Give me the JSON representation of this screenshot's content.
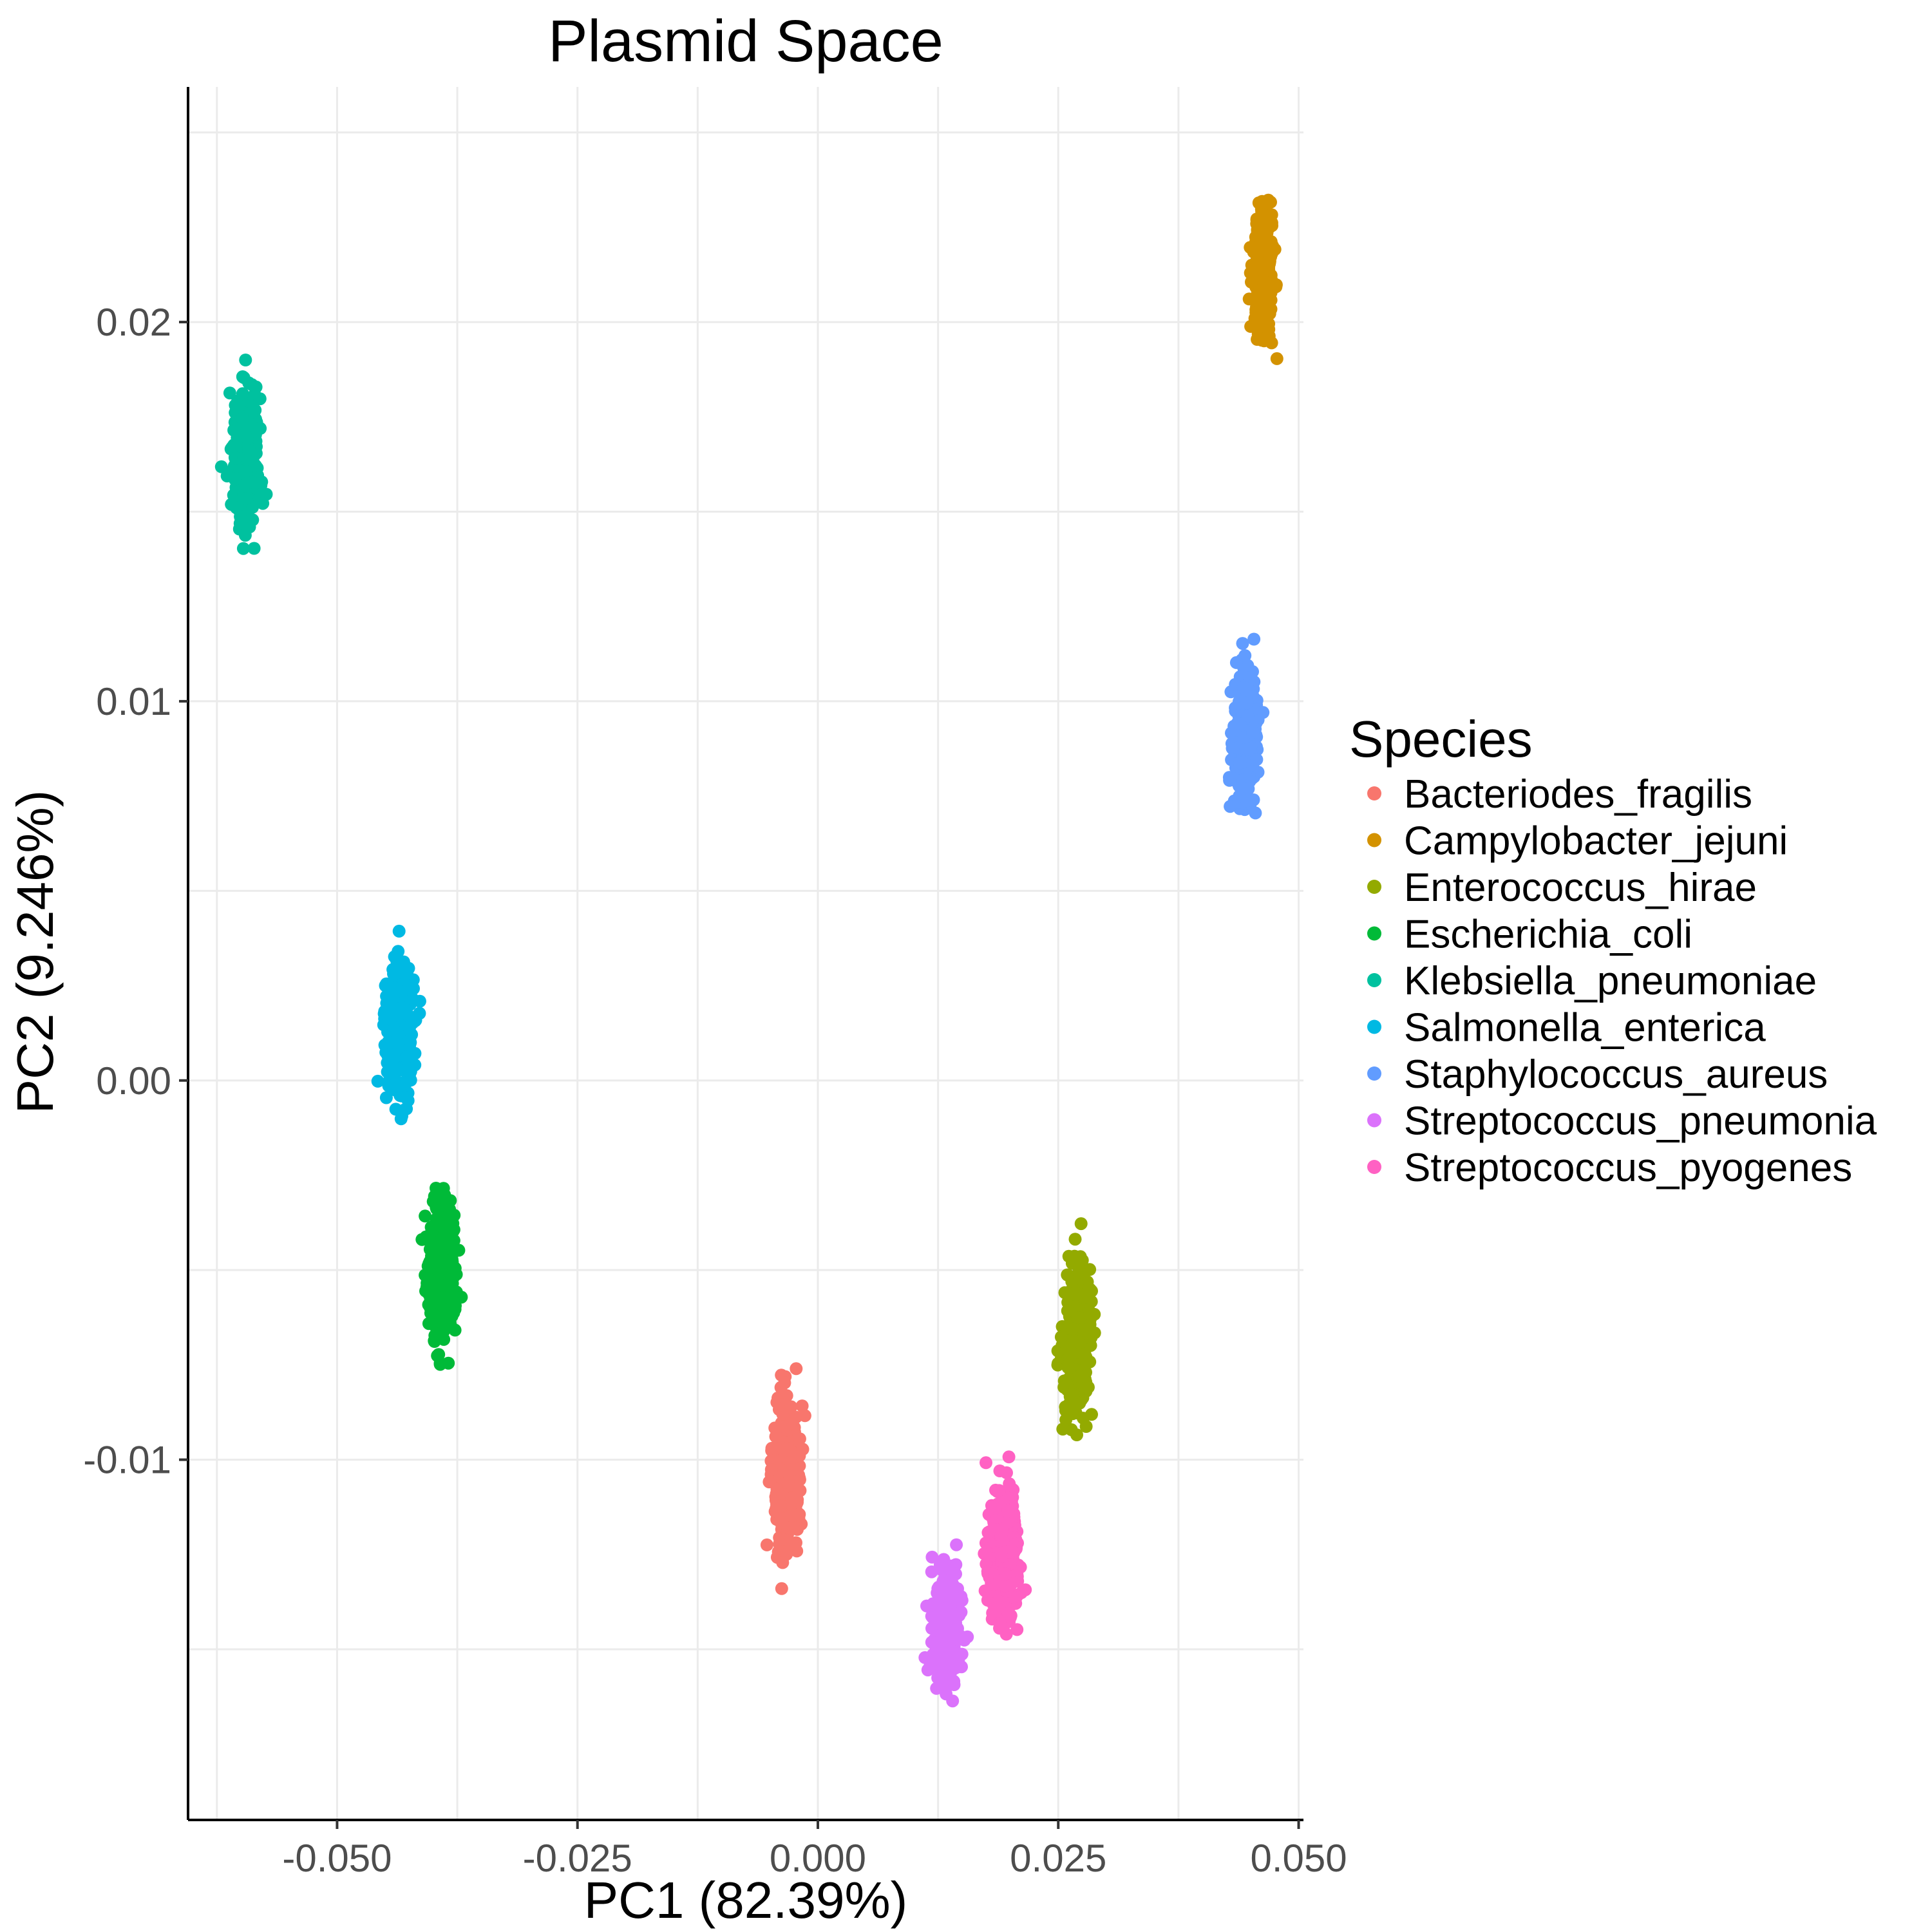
{
  "chart_data": {
    "type": "scatter",
    "title": "Plasmid Space",
    "xlabel": "PC1 (82.39%)",
    "ylabel": "PC2 (9.246%)",
    "xlim": [
      -0.0655,
      0.0505
    ],
    "ylim": [
      -0.0195,
      0.0262
    ],
    "x_ticks": [
      -0.05,
      -0.025,
      0.0,
      0.025,
      0.05
    ],
    "x_tick_labels": [
      "-0.050",
      "-0.025",
      "0.000",
      "0.025",
      "0.050"
    ],
    "y_ticks": [
      -0.01,
      0.0,
      0.01,
      0.02
    ],
    "y_tick_labels": [
      "-0.01",
      "0.00",
      "0.01",
      "0.02"
    ],
    "grid": true,
    "legend": {
      "title": "Species",
      "position": "right"
    },
    "series": [
      {
        "name": "Bacteriodes_fragilis",
        "color": "#F8766D",
        "center": [
          -0.0033,
          -0.0105
        ],
        "spread": [
          0.0007,
          0.0009
        ],
        "y_range": [
          -0.0134,
          -0.0076
        ]
      },
      {
        "name": "Campylobacter_jejuni",
        "color": "#D39200",
        "center": [
          0.0463,
          0.0214
        ],
        "spread": [
          0.0005,
          0.0008
        ],
        "y_range": [
          0.0188,
          0.0243
        ]
      },
      {
        "name": "Enterococcus_hirae",
        "color": "#93AA00",
        "center": [
          0.027,
          -0.0068
        ],
        "spread": [
          0.0007,
          0.0009
        ],
        "y_range": [
          -0.0097,
          -0.0035
        ]
      },
      {
        "name": "Escherichia_coli",
        "color": "#00BA38",
        "center": [
          -0.0391,
          -0.005
        ],
        "spread": [
          0.0007,
          0.0009
        ],
        "y_range": [
          -0.0079,
          -0.0014
        ]
      },
      {
        "name": "Klebsiella_pneumoniae",
        "color": "#00C19F",
        "center": [
          -0.0595,
          0.0164
        ],
        "spread": [
          0.0007,
          0.0008
        ],
        "y_range": [
          0.0137,
          0.019
        ]
      },
      {
        "name": "Salmonella_enterica",
        "color": "#00B9E3",
        "center": [
          -0.0435,
          0.0014
        ],
        "spread": [
          0.0007,
          0.0009
        ],
        "y_range": [
          -0.0015,
          0.0043
        ]
      },
      {
        "name": "Staphylococcus_aureus",
        "color": "#619CFF",
        "center": [
          0.0444,
          0.0092
        ],
        "spread": [
          0.0006,
          0.0008
        ],
        "y_range": [
          0.0062,
          0.0125
        ]
      },
      {
        "name": "Streptococcus_pneumonia",
        "color": "#DB72FB",
        "center": [
          0.0134,
          -0.0145
        ],
        "spread": [
          0.0007,
          0.0008
        ],
        "y_range": [
          -0.0173,
          -0.0114
        ]
      },
      {
        "name": "Streptococcus_pyogenes",
        "color": "#FF61C3",
        "center": [
          0.0193,
          -0.0125
        ],
        "spread": [
          0.0007,
          0.0009
        ],
        "y_range": [
          -0.0146,
          -0.0093
        ]
      }
    ]
  }
}
